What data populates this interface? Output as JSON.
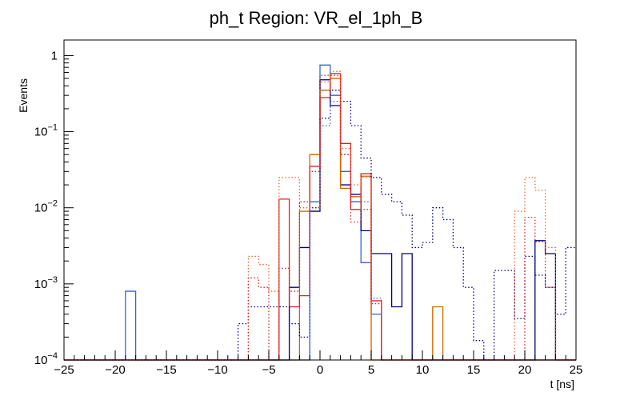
{
  "chart_data": {
    "type": "histogram",
    "title": "ph_t Region: VR_el_1ph_B",
    "xlabel": "t [ns]",
    "ylabel": "Events",
    "xlim": [
      -25,
      25
    ],
    "ylim": [
      0.0001,
      1.6
    ],
    "y_scale": "log",
    "bin_width": 1,
    "bin_start": -25,
    "grid": false,
    "legend": "none",
    "x_ticks": [
      -25,
      -20,
      -15,
      -10,
      -5,
      0,
      5,
      10,
      15,
      20,
      25
    ],
    "x_tick_labels": [
      "−25",
      "−20",
      "−15",
      "−10",
      "−5",
      "0",
      "5",
      "10",
      "15",
      "20",
      "25"
    ],
    "y_ticks": [
      {
        "value": 1,
        "base": "1",
        "exp": ""
      },
      {
        "value": 0.1,
        "base": "10",
        "exp": "−1"
      },
      {
        "value": 0.01,
        "base": "10",
        "exp": "−2"
      },
      {
        "value": 0.001,
        "base": "10",
        "exp": "−3"
      },
      {
        "value": 0.0001,
        "base": "10",
        "exp": "−4"
      }
    ],
    "series": [
      {
        "color": "#3366cc",
        "style": "solid",
        "values": [
          0,
          0,
          0,
          0,
          0,
          0,
          0.0008,
          0,
          0,
          0,
          0,
          0,
          0,
          0,
          0,
          0,
          0,
          0,
          0,
          0,
          0,
          0,
          0,
          0,
          0.012,
          0.75,
          0.3,
          0.03,
          0.012,
          0.0019,
          0.0004,
          0,
          0,
          0,
          0,
          0,
          0,
          0,
          0,
          0,
          0,
          0,
          0,
          0,
          0,
          0,
          0,
          0,
          0,
          0
        ]
      },
      {
        "color": "#000080",
        "style": "solid",
        "values": [
          0,
          0,
          0,
          0,
          0,
          0,
          0,
          0,
          0,
          0,
          0,
          0,
          0,
          0,
          0,
          0,
          0,
          0,
          0,
          0,
          0,
          0,
          0.0009,
          0.003,
          0.009,
          0.48,
          0.22,
          0.02,
          0.015,
          0.005,
          0.0025,
          0.0025,
          0.0005,
          0.0025,
          0,
          0,
          0,
          0,
          0,
          0,
          0,
          0,
          0,
          0,
          0,
          0,
          0.0037,
          0.0025,
          0,
          0
        ]
      },
      {
        "color": "#cc6600",
        "style": "solid",
        "values": [
          0,
          0,
          0,
          0,
          0,
          0,
          0,
          0,
          0,
          0,
          0,
          0,
          0,
          0,
          0,
          0,
          0,
          0,
          0,
          0,
          0,
          0,
          0,
          0.009,
          0.05,
          0.35,
          0.5,
          0.018,
          0.014,
          0.026,
          0,
          0,
          0,
          0,
          0,
          0,
          0.0005,
          0,
          0,
          0,
          0,
          0,
          0,
          0,
          0,
          0,
          0,
          0,
          0,
          0
        ]
      },
      {
        "color": "#dd2222",
        "style": "solid",
        "values": [
          0,
          0,
          0,
          0,
          0,
          0,
          0,
          0,
          0,
          0,
          0,
          0,
          0,
          0,
          0,
          0,
          0,
          0,
          0,
          0,
          0,
          0.013,
          0.0005,
          0.0007,
          0.035,
          0.28,
          0.58,
          0.07,
          0.0095,
          0.028,
          0.0006,
          0.0001,
          0,
          0,
          0,
          0,
          0,
          0,
          0,
          0,
          0,
          0,
          0,
          0,
          0,
          0,
          0,
          0,
          0,
          0
        ]
      },
      {
        "color": "#000080",
        "style": "dotted",
        "values": [
          0,
          0,
          0,
          0,
          0,
          0,
          0,
          0,
          0,
          0,
          0,
          0,
          0,
          0,
          0,
          0,
          0,
          0.0003,
          0.0005,
          0.0005,
          0.0005,
          0.0005,
          0.0003,
          0.0002,
          0.01,
          0.15,
          0.35,
          0.25,
          0.12,
          0.045,
          0.025,
          0.015,
          0.012,
          0.008,
          0.003,
          0.0035,
          0.01,
          0.007,
          0.003,
          0.0009,
          0.00018,
          0,
          0.0015,
          0.0015,
          0.00035,
          0.0023,
          0.0013,
          0.0009,
          0.0004,
          0.003
        ]
      },
      {
        "color": "#3366cc",
        "style": "dotted",
        "values": [
          0,
          0,
          0,
          0,
          0,
          0,
          0,
          0,
          0,
          0,
          0,
          0,
          0,
          0,
          0,
          0,
          0,
          0,
          0,
          0,
          0,
          0,
          0,
          0,
          0.012,
          0.12,
          0.25,
          0.05,
          0.012,
          0.012,
          0.00065,
          0,
          0,
          0,
          0,
          0,
          0,
          0,
          0,
          0,
          0,
          0,
          0,
          0,
          0,
          0,
          0,
          0,
          0,
          0
        ]
      },
      {
        "color": "#ee6633",
        "style": "dotted",
        "values": [
          0,
          0,
          0,
          0,
          0,
          0,
          0,
          0,
          0,
          0,
          0,
          0,
          0,
          0,
          0,
          0,
          0,
          0,
          0.0023,
          0.0018,
          0.0008,
          0.025,
          0.025,
          0.01,
          0.01,
          0.45,
          0.62,
          0.06,
          0.02,
          0.025,
          0,
          0,
          0,
          0,
          0,
          0,
          0,
          0,
          0,
          0,
          0,
          0,
          0,
          0,
          0.009,
          0.025,
          0.017,
          0.003,
          0,
          0
        ]
      },
      {
        "color": "#dd2222",
        "style": "dotted",
        "values": [
          0,
          0,
          0,
          0,
          0,
          0,
          0,
          0,
          0,
          0,
          0,
          0,
          0,
          0,
          0,
          0,
          0,
          0,
          0.0012,
          0.0009,
          0,
          0.0016,
          0.0008,
          0.012,
          0.03,
          0.55,
          0.55,
          0.05,
          0.0065,
          0.0095,
          0.00055,
          0,
          0,
          0,
          0,
          0,
          0,
          0,
          0,
          0,
          0,
          0,
          0,
          0,
          0,
          0.0075,
          0.0036,
          0.0009,
          0,
          0
        ]
      }
    ]
  }
}
